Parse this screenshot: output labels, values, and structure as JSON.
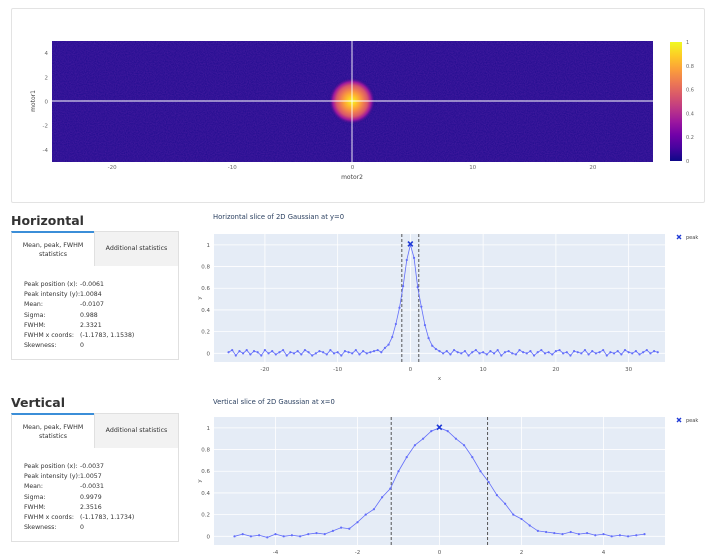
{
  "heatmap": {
    "xlabel": "motor2",
    "ylabel": "motor1",
    "x_ticks": [
      "-20",
      "-10",
      "0",
      "10",
      "20"
    ],
    "y_ticks": [
      "4",
      "2",
      "0",
      "-2",
      "-4"
    ],
    "colorbar_ticks": [
      "1",
      "0.8",
      "0.6",
      "0.4",
      "0.2",
      "0"
    ],
    "colors": [
      "#0d0887",
      "#46039f",
      "#7201a8",
      "#9c179e",
      "#bd3786",
      "#d8576b",
      "#ed7953",
      "#fb9f3a",
      "#fdca26",
      "#f0f921"
    ]
  },
  "horizontal": {
    "section_title": "Horizontal",
    "tab_active": "Mean, peak, FWHM statistics",
    "tab_inactive": "Additional statistics",
    "stats": [
      {
        "label": "Peak position (x):",
        "value": "-0.0061"
      },
      {
        "label": "Peak intensity (y):",
        "value": "1.0084"
      },
      {
        "label": "Mean:",
        "value": "-0.0107"
      },
      {
        "label": "Sigma:",
        "value": "0.988"
      },
      {
        "label": "FWHM:",
        "value": "2.3321"
      },
      {
        "label": "FWHM x coords:",
        "value": "(-1.1783, 1.1538)"
      },
      {
        "label": "Skewness:",
        "value": "0"
      }
    ]
  },
  "vertical": {
    "section_title": "Vertical",
    "tab_active": "Mean, peak, FWHM statistics",
    "tab_inactive": "Additional statistics",
    "stats": [
      {
        "label": "Peak position (x):",
        "value": "-0.0037"
      },
      {
        "label": "Peak intensity (y):",
        "value": "1.0057"
      },
      {
        "label": "Mean:",
        "value": "-0.0031"
      },
      {
        "label": "Sigma:",
        "value": "0.9979"
      },
      {
        "label": "FWHM:",
        "value": "2.3516"
      },
      {
        "label": "FWHM x coords:",
        "value": "(-1.1783, 1.1734)"
      },
      {
        "label": "Skewness:",
        "value": "0"
      }
    ]
  },
  "chart_data": [
    {
      "type": "heatmap",
      "title": "",
      "xlabel": "motor2",
      "ylabel": "motor1",
      "xlim": [
        -25,
        25
      ],
      "ylim": [
        -5,
        5
      ],
      "peak": {
        "x": 0,
        "y": 0,
        "value": 1
      },
      "zlim": [
        0,
        1
      ],
      "crosshair": {
        "x": 0,
        "y": 0
      }
    },
    {
      "type": "line",
      "title": "Horizontal slice of 2D Gaussian at y=0",
      "xlabel": "x",
      "ylabel": "y",
      "xlim": [
        -27,
        35
      ],
      "ylim": [
        -0.08,
        1.1
      ],
      "x_ticks": [
        "-20",
        "-10",
        "0",
        "10",
        "20",
        "30"
      ],
      "y_ticks": [
        "0",
        "0.2",
        "0.4",
        "0.6",
        "0.8",
        "1"
      ],
      "fwhm_lines": [
        -1.1783,
        1.1538
      ],
      "peak": {
        "x": -0.0061,
        "y": 1.0084
      },
      "legend": "peak",
      "series_color": "#636efa",
      "x": [
        -25.0,
        -24.5,
        -24.0,
        -23.5,
        -23.0,
        -22.5,
        -22.0,
        -21.5,
        -21.0,
        -20.5,
        -20.0,
        -19.5,
        -19.0,
        -18.5,
        -18.0,
        -17.5,
        -17.0,
        -16.5,
        -16.0,
        -15.5,
        -15.0,
        -14.5,
        -14.0,
        -13.5,
        -13.0,
        -12.5,
        -12.0,
        -11.5,
        -11.0,
        -10.5,
        -10.0,
        -9.5,
        -9.0,
        -8.5,
        -8.0,
        -7.5,
        -7.0,
        -6.5,
        -6.0,
        -5.5,
        -5.0,
        -4.5,
        -4.0,
        -3.5,
        -3.0,
        -2.5,
        -2.0,
        -1.5,
        -1.0,
        -0.5,
        0.0,
        0.5,
        1.0,
        1.5,
        2.0,
        2.5,
        3.0,
        3.5,
        4.0,
        4.5,
        5.0,
        5.5,
        6.0,
        6.5,
        7.0,
        7.5,
        8.0,
        8.5,
        9.0,
        9.5,
        10.0,
        10.5,
        11.0,
        11.5,
        12.0,
        12.5,
        13.0,
        13.5,
        14.0,
        14.5,
        15.0,
        15.5,
        16.0,
        16.5,
        17.0,
        17.5,
        18.0,
        18.5,
        19.0,
        19.5,
        20.0,
        20.5,
        21.0,
        21.5,
        22.0,
        22.5,
        23.0,
        23.5,
        24.0,
        24.5,
        25.0,
        25.5,
        26.0,
        26.5,
        27.0,
        27.5,
        28.0,
        28.5,
        29.0,
        29.5,
        30.0,
        30.5,
        31.0,
        31.5,
        32.0,
        32.5,
        33.0,
        33.5,
        34.0
      ],
      "y": [
        0.01,
        0.03,
        -0.02,
        0.02,
        0.0,
        0.03,
        -0.01,
        0.02,
        0.01,
        -0.02,
        0.03,
        0.0,
        0.02,
        -0.01,
        0.01,
        0.03,
        -0.02,
        0.01,
        0.0,
        0.02,
        -0.01,
        0.03,
        0.01,
        -0.02,
        0.0,
        0.02,
        0.01,
        -0.01,
        0.03,
        0.0,
        0.01,
        -0.02,
        0.02,
        0.01,
        0.0,
        0.03,
        -0.01,
        0.02,
        0.0,
        0.01,
        0.02,
        0.03,
        0.01,
        0.05,
        0.08,
        0.15,
        0.27,
        0.42,
        0.62,
        0.86,
        1.0,
        0.88,
        0.61,
        0.43,
        0.26,
        0.14,
        0.07,
        0.04,
        0.02,
        0.0,
        0.02,
        -0.01,
        0.03,
        0.01,
        0.0,
        0.02,
        -0.02,
        0.01,
        0.03,
        0.0,
        0.01,
        -0.01,
        0.02,
        0.0,
        0.03,
        -0.02,
        0.01,
        0.02,
        0.0,
        -0.01,
        0.03,
        0.01,
        0.0,
        0.02,
        -0.02,
        0.01,
        0.03,
        0.0,
        0.01,
        -0.01,
        0.02,
        0.03,
        0.0,
        0.01,
        -0.02,
        0.02,
        0.01,
        0.0,
        0.03,
        -0.01,
        0.02,
        0.0,
        0.01,
        0.03,
        -0.02,
        0.01,
        0.0,
        0.02,
        -0.01,
        0.03,
        0.01,
        0.0,
        0.02,
        -0.01,
        0.01,
        0.03,
        0.0,
        0.02,
        0.01
      ]
    },
    {
      "type": "line",
      "title": "Vertical slice of 2D Gaussian at x=0",
      "xlabel": "x",
      "ylabel": "y",
      "xlim": [
        -5.5,
        5.5
      ],
      "ylim": [
        -0.08,
        1.1
      ],
      "x_ticks": [
        "-4",
        "-2",
        "0",
        "2",
        "4"
      ],
      "y_ticks": [
        "0",
        "0.2",
        "0.4",
        "0.6",
        "0.8",
        "1"
      ],
      "fwhm_lines": [
        -1.1783,
        1.1734
      ],
      "peak": {
        "x": -0.0037,
        "y": 1.0057
      },
      "legend": "peak",
      "series_color": "#636efa",
      "x": [
        -5.0,
        -4.8,
        -4.6,
        -4.4,
        -4.2,
        -4.0,
        -3.8,
        -3.6,
        -3.4,
        -3.2,
        -3.0,
        -2.8,
        -2.6,
        -2.4,
        -2.2,
        -2.0,
        -1.8,
        -1.6,
        -1.4,
        -1.2,
        -1.0,
        -0.8,
        -0.6,
        -0.4,
        -0.2,
        0.0,
        0.2,
        0.4,
        0.6,
        0.8,
        1.0,
        1.2,
        1.4,
        1.6,
        1.8,
        2.0,
        2.2,
        2.4,
        2.6,
        2.8,
        3.0,
        3.2,
        3.4,
        3.6,
        3.8,
        4.0,
        4.2,
        4.4,
        4.6,
        4.8,
        5.0
      ],
      "y": [
        0.0,
        0.02,
        0.0,
        0.01,
        -0.01,
        0.02,
        0.0,
        0.01,
        0.0,
        0.02,
        0.03,
        0.02,
        0.05,
        0.08,
        0.07,
        0.13,
        0.2,
        0.25,
        0.36,
        0.44,
        0.6,
        0.73,
        0.84,
        0.9,
        0.97,
        1.0,
        0.97,
        0.9,
        0.84,
        0.73,
        0.6,
        0.5,
        0.38,
        0.3,
        0.2,
        0.16,
        0.1,
        0.05,
        0.04,
        0.03,
        0.02,
        0.04,
        0.02,
        0.03,
        0.01,
        0.02,
        0.0,
        0.01,
        0.0,
        0.01,
        0.02
      ]
    }
  ]
}
